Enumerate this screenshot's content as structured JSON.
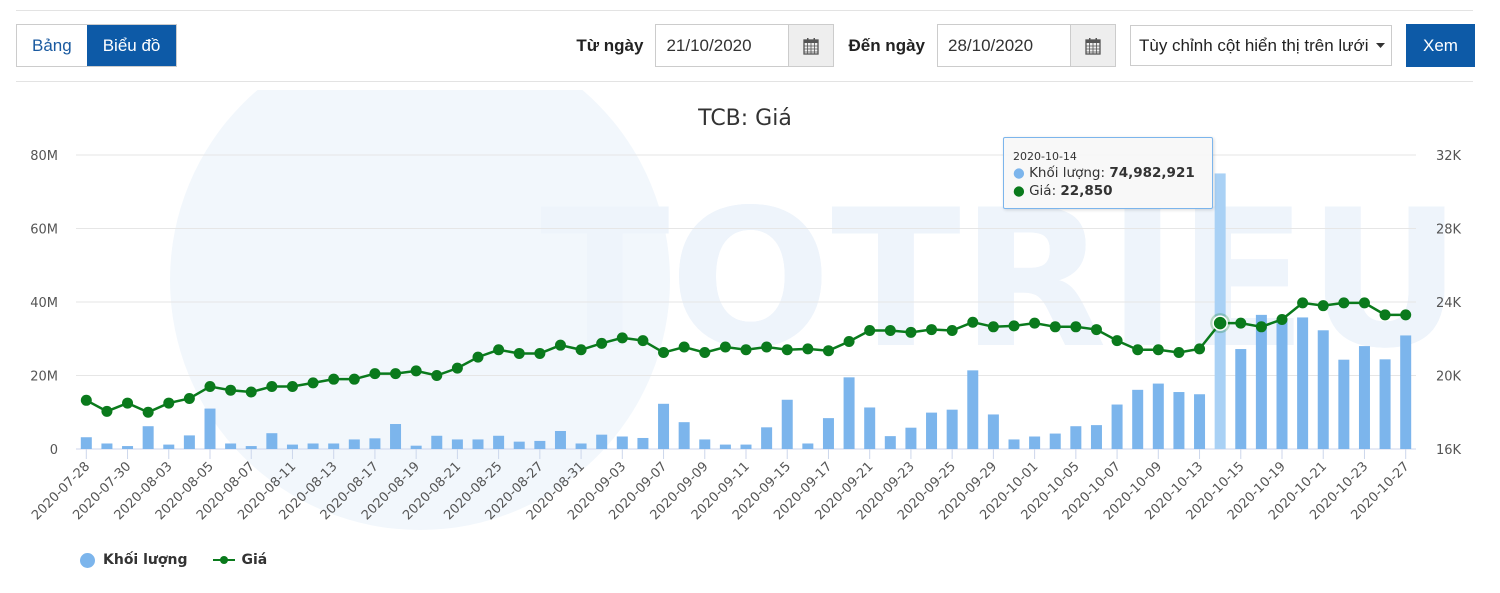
{
  "toolbar": {
    "tabs": [
      {
        "label": "Bảng",
        "active": false
      },
      {
        "label": "Biểu đồ",
        "active": true
      }
    ],
    "from_label": "Từ ngày",
    "from_value": "21/10/2020",
    "to_label": "Đến ngày",
    "to_value": "28/10/2020",
    "column_select": "Tùy chỉnh cột hiển thị trên lưới",
    "view_button": "Xem",
    "calendar_icon": "calendar-icon",
    "accent": "#0d5aa7"
  },
  "tooltip": {
    "date": "2020-10-14",
    "volume_label": "Khối lượng: ",
    "volume_value": "74,982,921",
    "price_label": "Giá: ",
    "price_value": "22,850"
  },
  "legend": {
    "volume": "Khối lượng",
    "price": "Giá"
  },
  "chart_data": {
    "type": "bar+line",
    "title": "TCB: Giá",
    "xlabel": "",
    "ylabel_left": "Khối lượng",
    "ylabel_right": "Giá",
    "ylim_left": [
      0,
      80000000
    ],
    "ylim_right": [
      16000,
      32000
    ],
    "yticks_left": [
      "0",
      "20M",
      "40M",
      "60M",
      "80M"
    ],
    "yticks_right": [
      "16K",
      "20K",
      "24K",
      "28K",
      "32K"
    ],
    "grid": true,
    "legend_position": "bottom-left",
    "bar_color": "#7cb5ec",
    "line_color": "#0a7a1c",
    "x_tick_labels": [
      "2020-07-28",
      "2020-07-30",
      "2020-08-03",
      "2020-08-05",
      "2020-08-07",
      "2020-08-11",
      "2020-08-13",
      "2020-08-17",
      "2020-08-19",
      "2020-08-21",
      "2020-08-25",
      "2020-08-27",
      "2020-08-31",
      "2020-09-03",
      "2020-09-07",
      "2020-09-09",
      "2020-09-11",
      "2020-09-15",
      "2020-09-17",
      "2020-09-21",
      "2020-09-23",
      "2020-09-25",
      "2020-09-29",
      "2020-10-01",
      "2020-10-05",
      "2020-10-07",
      "2020-10-09",
      "2020-10-13",
      "2020-10-15",
      "2020-10-19",
      "2020-10-21",
      "2020-10-23",
      "2020-10-27"
    ],
    "x": [
      "2020-07-28",
      "2020-07-29",
      "2020-07-30",
      "2020-07-31",
      "2020-08-03",
      "2020-08-04",
      "2020-08-05",
      "2020-08-06",
      "2020-08-07",
      "2020-08-10",
      "2020-08-11",
      "2020-08-12",
      "2020-08-13",
      "2020-08-14",
      "2020-08-17",
      "2020-08-18",
      "2020-08-19",
      "2020-08-20",
      "2020-08-21",
      "2020-08-24",
      "2020-08-25",
      "2020-08-26",
      "2020-08-27",
      "2020-08-28",
      "2020-08-31",
      "2020-09-01",
      "2020-09-03",
      "2020-09-04",
      "2020-09-07",
      "2020-09-08",
      "2020-09-09",
      "2020-09-10",
      "2020-09-11",
      "2020-09-14",
      "2020-09-15",
      "2020-09-16",
      "2020-09-17",
      "2020-09-18",
      "2020-09-21",
      "2020-09-22",
      "2020-09-23",
      "2020-09-24",
      "2020-09-25",
      "2020-09-28",
      "2020-09-29",
      "2020-09-30",
      "2020-10-01",
      "2020-10-02",
      "2020-10-05",
      "2020-10-06",
      "2020-10-07",
      "2020-10-08",
      "2020-10-09",
      "2020-10-12",
      "2020-10-13",
      "2020-10-14",
      "2020-10-15",
      "2020-10-16",
      "2020-10-19",
      "2020-10-20",
      "2020-10-21",
      "2020-10-22",
      "2020-10-23",
      "2020-10-26",
      "2020-10-27"
    ],
    "series": [
      {
        "name": "Khối lượng",
        "type": "bar",
        "axis": "left",
        "values": [
          3200000,
          1500000,
          800000,
          6200000,
          1200000,
          3700000,
          11000000,
          1500000,
          800000,
          4300000,
          1200000,
          1500000,
          1500000,
          2600000,
          2900000,
          6800000,
          900000,
          3600000,
          2600000,
          2600000,
          3600000,
          2000000,
          2200000,
          4900000,
          1500000,
          3900000,
          3400000,
          3000000,
          12300000,
          7300000,
          2600000,
          1200000,
          1200000,
          5900000,
          13400000,
          1500000,
          8400000,
          19500000,
          11300000,
          3500000,
          5800000,
          9900000,
          10700000,
          21400000,
          9400000,
          2600000,
          3400000,
          4200000,
          6200000,
          6500000,
          12100000,
          16100000,
          17800000,
          15500000,
          14900000,
          74982921,
          27200000,
          36500000,
          34900000,
          35800000,
          32300000,
          24300000,
          28000000,
          24400000,
          30900000
        ]
      },
      {
        "name": "Giá",
        "type": "line",
        "axis": "right",
        "values": [
          18650,
          18050,
          18500,
          18000,
          18500,
          18750,
          19400,
          19200,
          19100,
          19400,
          19400,
          19600,
          19800,
          19800,
          20100,
          20100,
          20250,
          20000,
          20400,
          21000,
          21400,
          21200,
          21200,
          21650,
          21400,
          21750,
          22050,
          21900,
          21250,
          21550,
          21250,
          21550,
          21400,
          21550,
          21400,
          21450,
          21350,
          21850,
          22450,
          22450,
          22350,
          22500,
          22450,
          22900,
          22650,
          22700,
          22850,
          22650,
          22650,
          22500,
          21900,
          21400,
          21400,
          21250,
          21450,
          22850,
          22850,
          22650,
          23050,
          23950,
          23800,
          23950,
          23950,
          23300,
          23300
        ]
      }
    ],
    "highlighted_point": {
      "x": "2020-10-14",
      "volume": 74982921,
      "price": 22850
    }
  }
}
